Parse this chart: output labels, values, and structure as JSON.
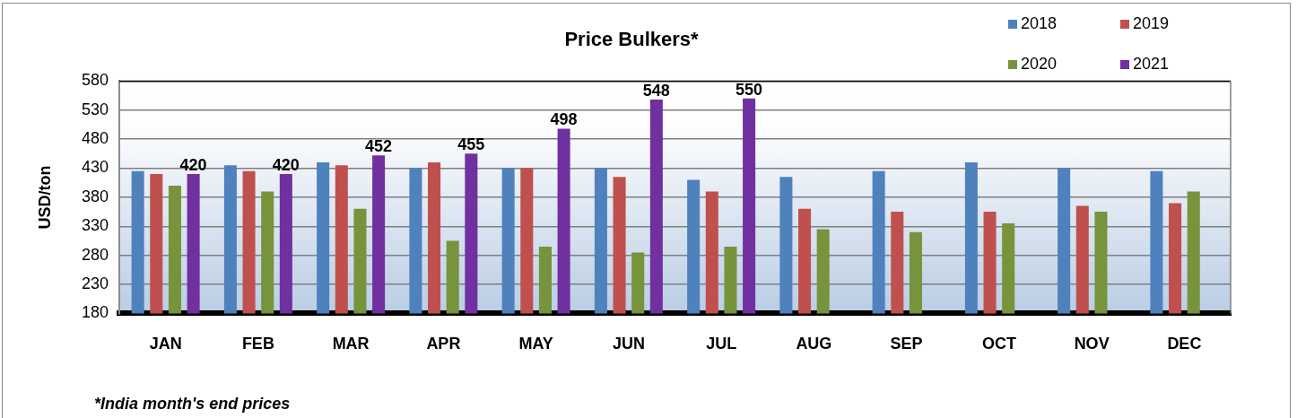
{
  "chart_data": {
    "type": "bar",
    "title": "Price Bulkers*",
    "ylabel": "USD/ton",
    "annotations": [
      "*India month's end prices"
    ],
    "categories": [
      "JAN",
      "FEB",
      "MAR",
      "APR",
      "MAY",
      "JUN",
      "JUL",
      "AUG",
      "SEP",
      "OCT",
      "NOV",
      "DEC"
    ],
    "series": [
      {
        "name": "2018",
        "color": "#4f81bd",
        "values": [
          425,
          435,
          440,
          430,
          430,
          430,
          410,
          415,
          425,
          440,
          430,
          425
        ]
      },
      {
        "name": "2019",
        "color": "#c0504d",
        "values": [
          420,
          425,
          435,
          440,
          430,
          415,
          390,
          360,
          355,
          355,
          365,
          370
        ]
      },
      {
        "name": "2020",
        "color": "#77933c",
        "values": [
          400,
          390,
          360,
          305,
          295,
          285,
          295,
          325,
          320,
          335,
          355,
          390
        ]
      },
      {
        "name": "2021",
        "color": "#7030a0",
        "values": [
          420,
          420,
          452,
          455,
          498,
          548,
          550,
          null,
          null,
          null,
          null,
          null
        ],
        "value_labels": [
          "420",
          "420",
          "452",
          "455",
          "498",
          "548",
          "550",
          null,
          null,
          null,
          null,
          null
        ]
      }
    ],
    "ylim": [
      180,
      580
    ],
    "yticks": [
      180,
      230,
      280,
      330,
      380,
      430,
      480,
      530,
      580
    ],
    "grid": "y",
    "legend": "top right"
  }
}
